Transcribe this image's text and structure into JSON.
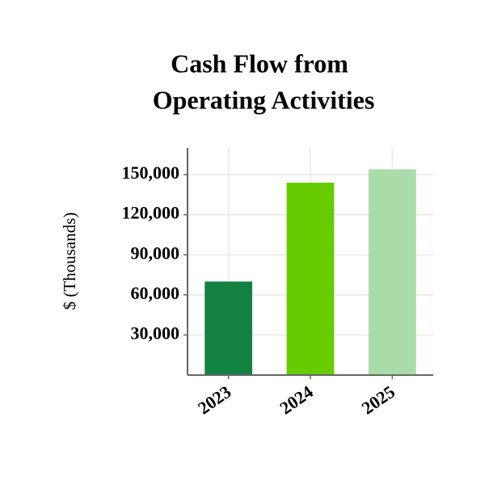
{
  "chart_data": {
    "type": "bar",
    "title": [
      "Cash Flow from",
      "Operating Activities"
    ],
    "ylabel": "$ (Thousands)",
    "categories": [
      "2023",
      "2024",
      "2025"
    ],
    "values": [
      70000,
      144000,
      154000
    ],
    "colors": [
      "#138241",
      "#66cc00",
      "#aadcaa"
    ],
    "ylim": [
      0,
      170000
    ],
    "yticks": [
      {
        "value": 30000,
        "label": "30,000"
      },
      {
        "value": 60000,
        "label": "60,000"
      },
      {
        "value": 90000,
        "label": "90,000"
      },
      {
        "value": 120000,
        "label": "120,000"
      },
      {
        "value": 150000,
        "label": "150,000"
      }
    ],
    "grid": true
  }
}
